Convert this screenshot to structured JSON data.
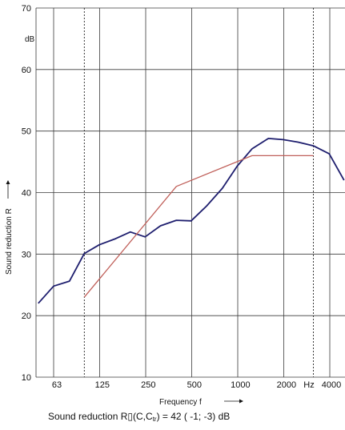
{
  "chart_data": {
    "type": "line",
    "ylabel": "Sound reduction R",
    "yunit": "dB",
    "xlabel": "Frequency f",
    "xunit": "Hz",
    "ylim": [
      10,
      70
    ],
    "yticks": [
      10,
      20,
      30,
      40,
      50,
      60,
      70
    ],
    "xaxis_scale": "log",
    "xticks": [
      {
        "value": 63,
        "label": "63"
      },
      {
        "value": 125,
        "label": "125"
      },
      {
        "value": 250,
        "label": "250"
      },
      {
        "value": 500,
        "label": "500"
      },
      {
        "value": 1000,
        "label": "1000"
      },
      {
        "value": 2000,
        "label": "2000"
      },
      {
        "value": 4000,
        "label": "4000"
      }
    ],
    "reference_lines_x": [
      100,
      3150
    ],
    "grid": true,
    "series": [
      {
        "color": "#1e1e6e",
        "x": [
          50,
          63,
          80,
          100,
          125,
          160,
          200,
          250,
          315,
          400,
          500,
          630,
          800,
          1000,
          1250,
          1600,
          2000,
          2500,
          3150,
          4000,
          5000
        ],
        "y": [
          22,
          24.8,
          25.6,
          30.1,
          31.5,
          32.5,
          33.6,
          32.8,
          34.6,
          35.5,
          35.4,
          37.8,
          40.7,
          44.3,
          47.1,
          48.8,
          48.6,
          48.2,
          47.6,
          46.3,
          42
        ]
      },
      {
        "color": "#c0605a",
        "x": [
          100,
          400,
          1250,
          3150
        ],
        "y": [
          23,
          41,
          46,
          46
        ]
      }
    ]
  },
  "footer": {
    "prefix": "Sound reduction R",
    "box": "▯",
    "open": "(C,C",
    "sub": "tr",
    "close": ") =   42 ( -1; -3) dB"
  }
}
